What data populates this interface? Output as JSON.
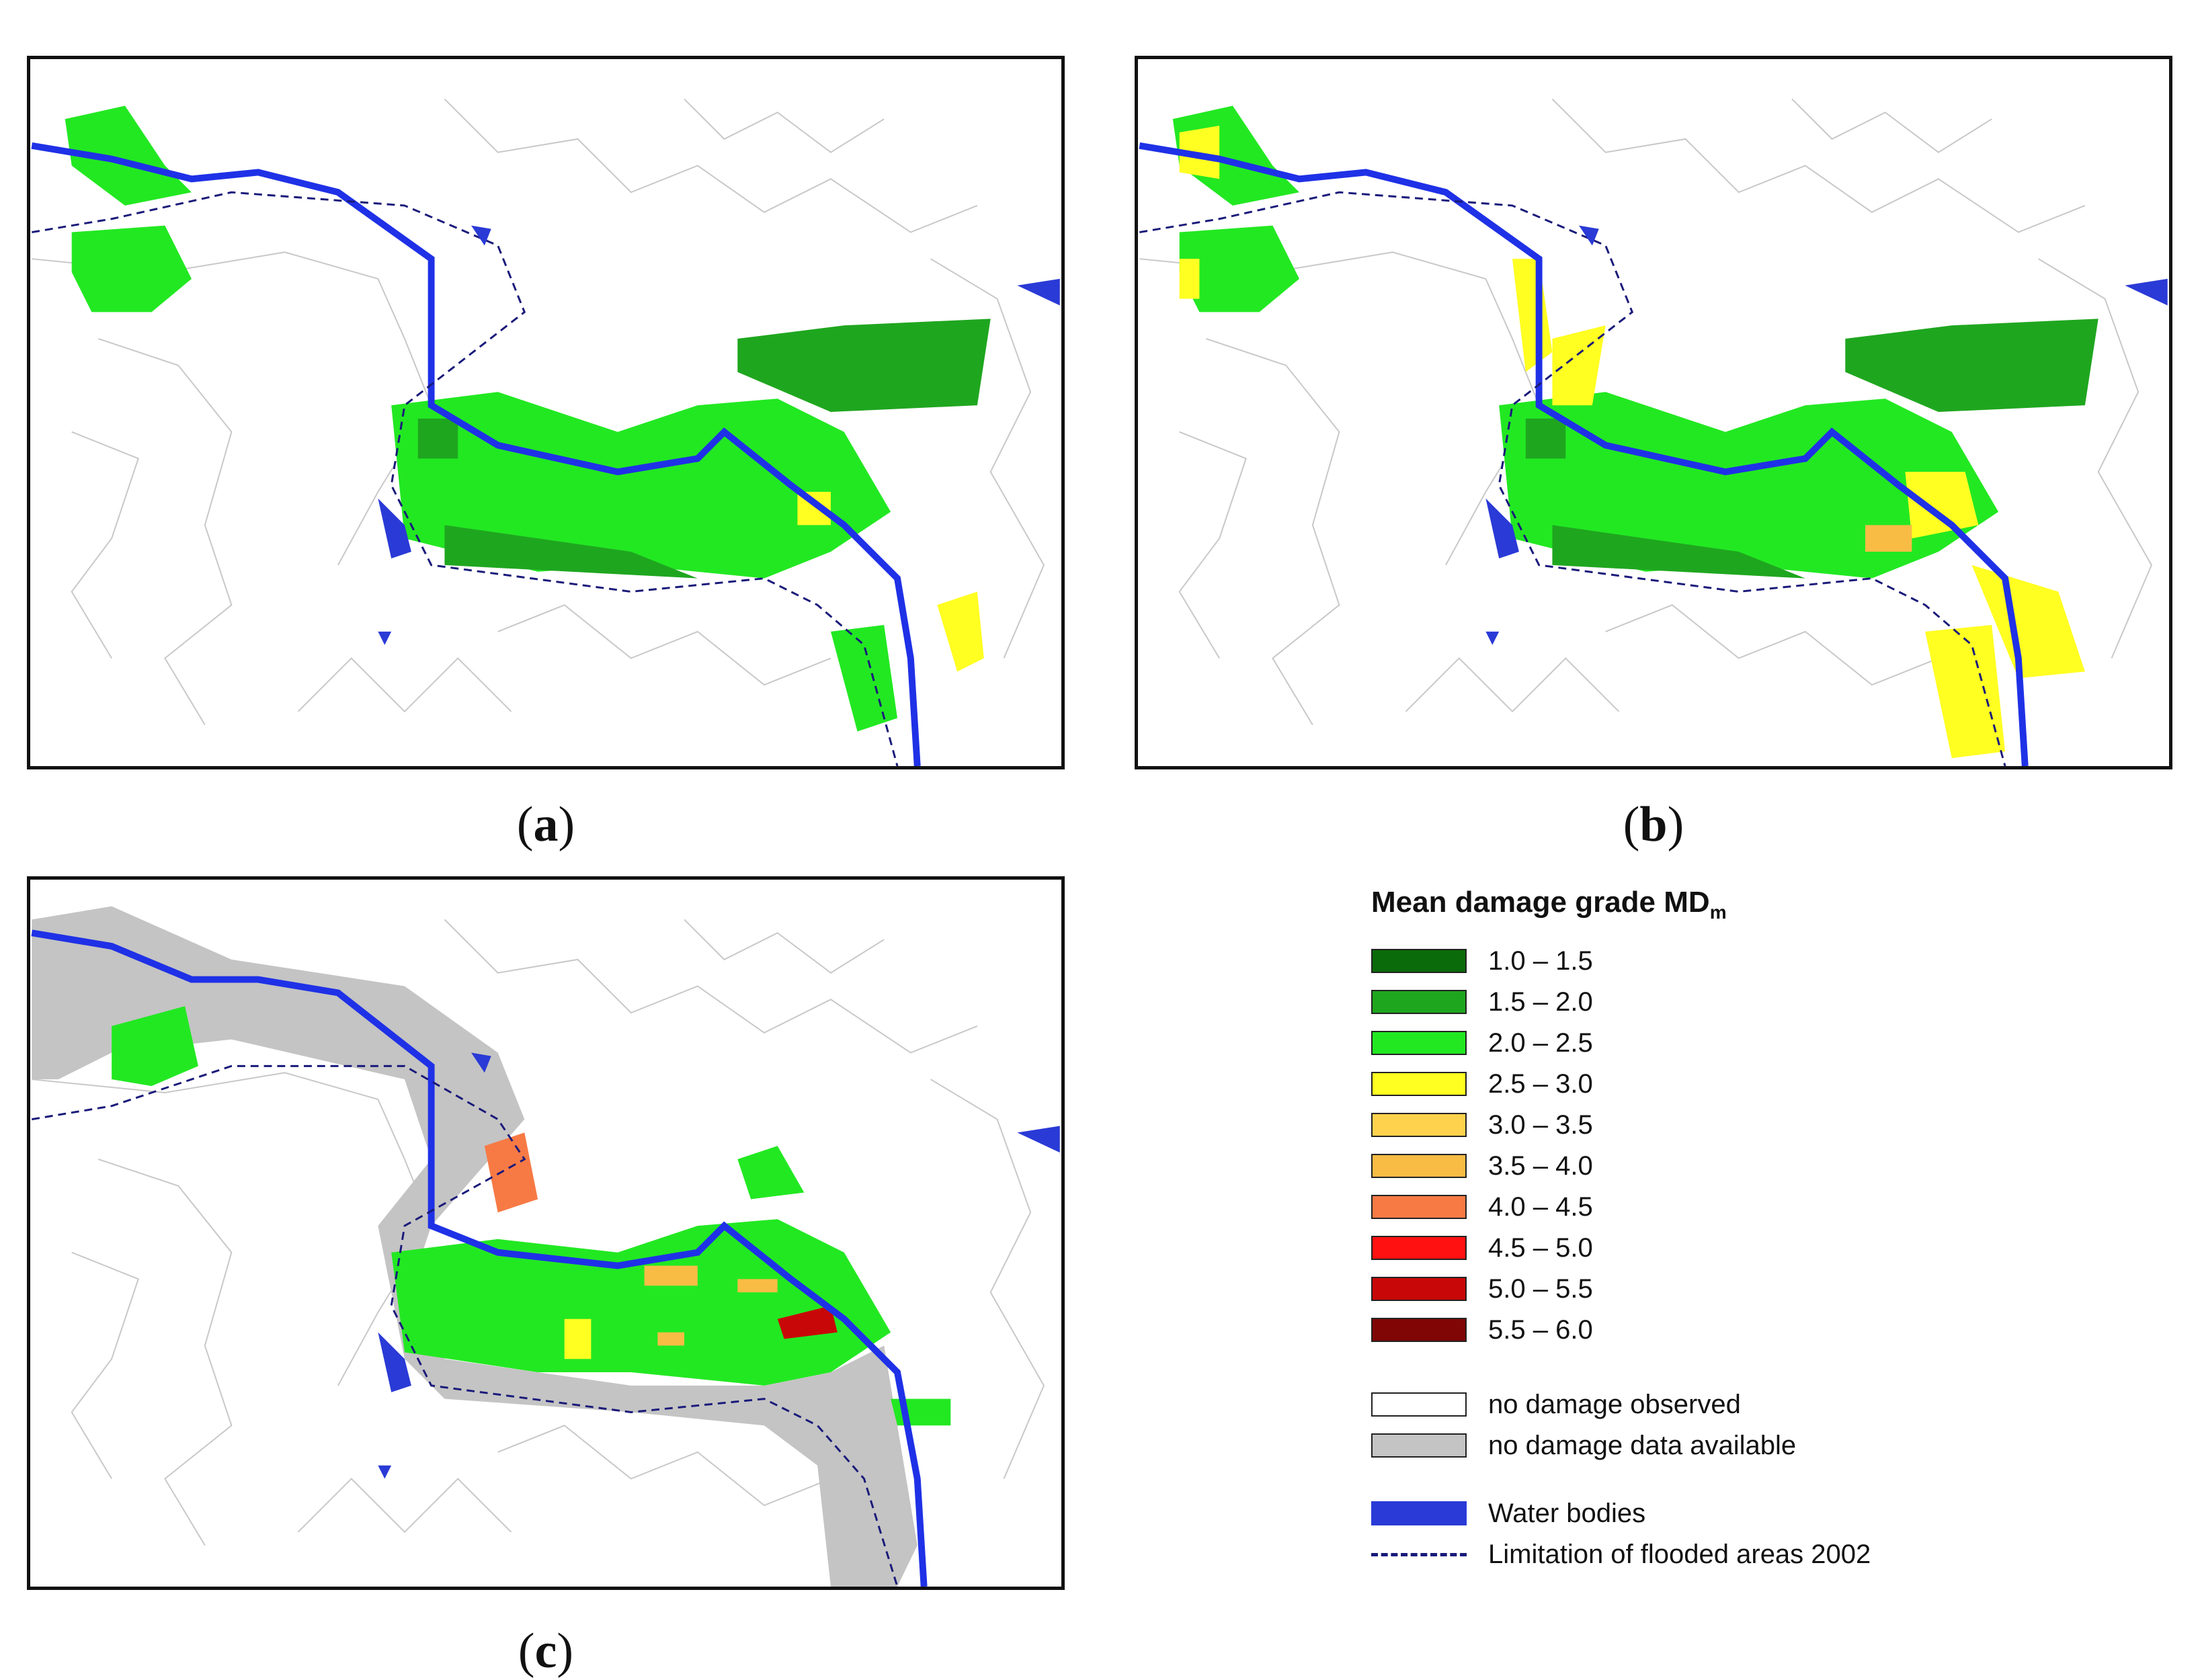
{
  "captions": {
    "a": "a",
    "b": "b",
    "c": "c"
  },
  "legend": {
    "title": "Mean damage grade MD",
    "title_sub": "m",
    "classes": [
      {
        "label": "1.0 – 1.5",
        "color": "#0a6b0a"
      },
      {
        "label": "1.5 – 2.0",
        "color": "#1fa61f"
      },
      {
        "label": "2.0 – 2.5",
        "color": "#22e822"
      },
      {
        "label": "2.5 – 3.0",
        "color": "#ffff22"
      },
      {
        "label": "3.0 – 3.5",
        "color": "#ffd24d"
      },
      {
        "label": "3.5 – 4.0",
        "color": "#f8bc45"
      },
      {
        "label": "4.0 – 4.5",
        "color": "#f77a45"
      },
      {
        "label": "4.5 – 5.0",
        "color": "#ff1111"
      },
      {
        "label": "5.0 – 5.5",
        "color": "#c80808"
      },
      {
        "label": "5.5 – 6.0",
        "color": "#800606"
      }
    ],
    "no_damage": {
      "label": "no damage observed",
      "color": "#ffffff"
    },
    "no_data": {
      "label": "no damage data available",
      "color": "#c4c4c4"
    },
    "water": {
      "label": "Water bodies",
      "color": "#2a3ad6"
    },
    "flood_limit": {
      "label": "Limitation of flooded areas 2002",
      "color": "#1a1a7a"
    }
  }
}
